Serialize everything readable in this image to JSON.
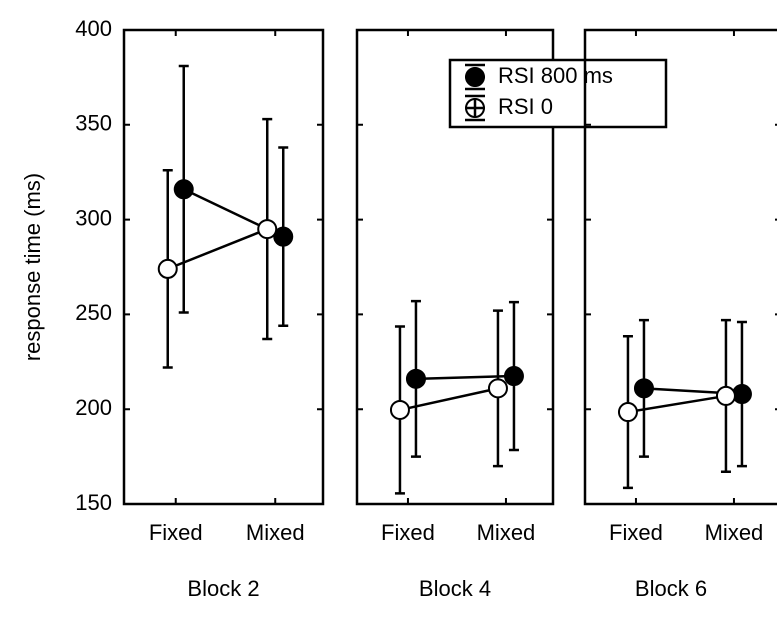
{
  "chart_data": [
    {
      "type": "line",
      "xlabel": "Block 2",
      "ylabel": "response time (ms)",
      "categories": [
        "Fixed",
        "Mixed"
      ],
      "ylim": [
        150,
        400
      ],
      "yticks": [
        150,
        200,
        250,
        300,
        350,
        400
      ],
      "series": [
        {
          "color": "#000000",
          "marker": "filled",
          "values": [
            316,
            291
          ],
          "errors": [
            65,
            47
          ]
        },
        {
          "color": "#000000",
          "marker": "open",
          "values": [
            274,
            295
          ],
          "errors": [
            52,
            58
          ]
        }
      ]
    },
    {
      "type": "line",
      "xlabel": "Block 4",
      "categories": [
        "Fixed",
        "Mixed"
      ],
      "ylim": [
        150,
        400
      ],
      "yticks": [
        150,
        200,
        250,
        300,
        350,
        400
      ],
      "legend": "upper right",
      "series": [
        {
          "name": "RSI 800 ms",
          "color": "#000000",
          "marker": "filled",
          "values": [
            216,
            217.5
          ],
          "errors": [
            41,
            39
          ]
        },
        {
          "name": "RSI 0",
          "color": "#000000",
          "marker": "open",
          "values": [
            199.6,
            211
          ],
          "errors": [
            44,
            41
          ]
        }
      ]
    },
    {
      "type": "line",
      "xlabel": "Block 6",
      "categories": [
        "Fixed",
        "Mixed"
      ],
      "ylim": [
        150,
        400
      ],
      "yticks": [
        150,
        200,
        250,
        300,
        350,
        400
      ],
      "series": [
        {
          "color": "#000000",
          "marker": "filled",
          "values": [
            211,
            208
          ],
          "errors": [
            36,
            38
          ]
        },
        {
          "color": "#000000",
          "marker": "open",
          "values": [
            198.5,
            207
          ],
          "errors": [
            40,
            40
          ]
        }
      ]
    }
  ]
}
